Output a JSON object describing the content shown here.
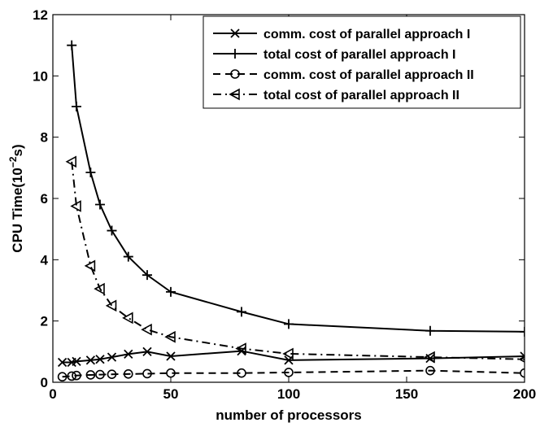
{
  "chart_data": {
    "type": "line",
    "xlabel": "number of processors",
    "ylabel_main": "CPU Time(10",
    "ylabel_exp": "−2",
    "ylabel_unit": "s)",
    "xlim": [
      0,
      200
    ],
    "ylim": [
      0,
      12
    ],
    "xticks": [
      0,
      50,
      100,
      150,
      200
    ],
    "yticks": [
      0,
      2,
      4,
      6,
      8,
      10,
      12
    ],
    "grid": false,
    "legend_position": "top-right",
    "series": [
      {
        "name": "comm. cost of parallel approach I",
        "marker": "x",
        "dash": "solid",
        "x": [
          4,
          8,
          10,
          16,
          20,
          25,
          32,
          40,
          50,
          80,
          100,
          160,
          200
        ],
        "y": [
          0.65,
          0.65,
          0.68,
          0.72,
          0.75,
          0.82,
          0.92,
          1.0,
          0.85,
          1.02,
          0.72,
          0.78,
          0.85
        ]
      },
      {
        "name": "total cost of parallel approach I",
        "marker": "+",
        "dash": "solid",
        "x": [
          8,
          10,
          16,
          20,
          25,
          32,
          40,
          50,
          80,
          100,
          160,
          200
        ],
        "y": [
          11.0,
          9.0,
          6.85,
          5.8,
          4.95,
          4.1,
          3.5,
          2.95,
          2.3,
          1.9,
          1.68,
          1.65
        ]
      },
      {
        "name": "comm. cost of parallel approach II",
        "marker": "o",
        "dash": "dashed",
        "x": [
          4,
          8,
          10,
          16,
          20,
          25,
          32,
          40,
          50,
          80,
          100,
          160,
          200
        ],
        "y": [
          0.18,
          0.2,
          0.22,
          0.24,
          0.25,
          0.26,
          0.27,
          0.28,
          0.3,
          0.3,
          0.32,
          0.38,
          0.3
        ]
      },
      {
        "name": "total cost of parallel approach II",
        "marker": "triangle-left",
        "dash": "dashdot",
        "x": [
          8,
          10,
          16,
          20,
          25,
          32,
          40,
          50,
          80,
          100,
          160,
          200
        ],
        "y": [
          7.2,
          5.75,
          3.8,
          3.05,
          2.5,
          2.1,
          1.72,
          1.48,
          1.1,
          0.93,
          0.82,
          0.75
        ]
      }
    ]
  },
  "colors": {
    "line": "#000000",
    "background": "#ffffff"
  }
}
